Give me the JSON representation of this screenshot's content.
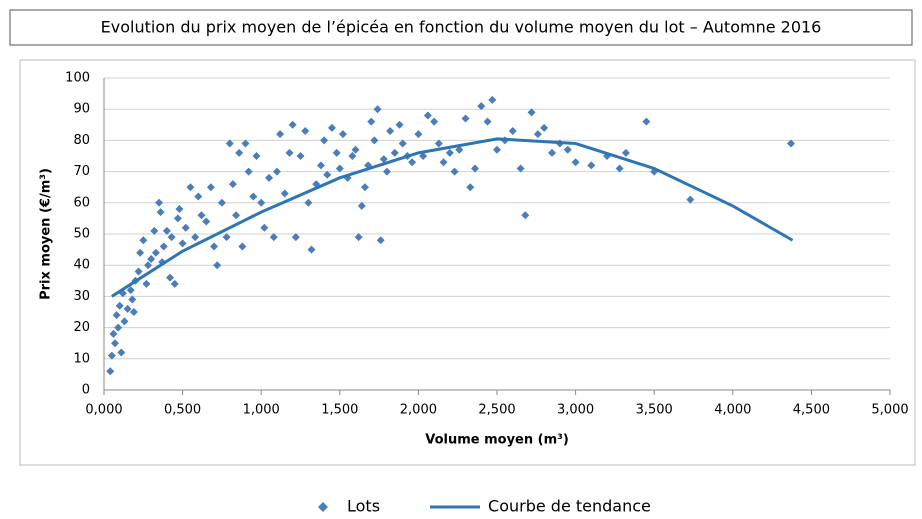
{
  "chart_data": {
    "type": "scatter",
    "title": "Evolution du prix moyen de l’épicéa en fonction du volume moyen du lot – Automne 2016",
    "x_label": "Volume moyen (m³)",
    "y_label": "Prix moyen (€/m³)",
    "xlim": [
      0,
      5
    ],
    "ylim": [
      0,
      100
    ],
    "xticks": [
      {
        "value": 0,
        "label": "0,000"
      },
      {
        "value": 0.5,
        "label": "0,500"
      },
      {
        "value": 1,
        "label": "1,000"
      },
      {
        "value": 1.5,
        "label": "1,500"
      },
      {
        "value": 2,
        "label": "2,000"
      },
      {
        "value": 2.5,
        "label": "2,500"
      },
      {
        "value": 3,
        "label": "3,000"
      },
      {
        "value": 3.5,
        "label": "3,500"
      },
      {
        "value": 4,
        "label": "4,000"
      },
      {
        "value": 4.5,
        "label": "4,500"
      },
      {
        "value": 5,
        "label": "5,000"
      }
    ],
    "yticks": [
      0,
      10,
      20,
      30,
      40,
      50,
      60,
      70,
      80,
      90,
      100
    ],
    "grid": true,
    "legend": "bottom",
    "series": [
      {
        "name": "Lots",
        "type": "scatter",
        "color": "#4a7ebb",
        "x": [
          0.04,
          0.05,
          0.06,
          0.07,
          0.08,
          0.09,
          0.1,
          0.11,
          0.12,
          0.13,
          0.15,
          0.17,
          0.18,
          0.19,
          0.2,
          0.22,
          0.23,
          0.25,
          0.27,
          0.28,
          0.3,
          0.32,
          0.33,
          0.35,
          0.36,
          0.37,
          0.38,
          0.4,
          0.42,
          0.43,
          0.45,
          0.47,
          0.48,
          0.5,
          0.52,
          0.55,
          0.58,
          0.6,
          0.62,
          0.65,
          0.68,
          0.7,
          0.72,
          0.75,
          0.78,
          0.8,
          0.82,
          0.84,
          0.86,
          0.88,
          0.9,
          0.92,
          0.95,
          0.97,
          1.0,
          1.02,
          1.05,
          1.08,
          1.1,
          1.12,
          1.15,
          1.18,
          1.2,
          1.22,
          1.25,
          1.28,
          1.3,
          1.32,
          1.35,
          1.38,
          1.4,
          1.42,
          1.45,
          1.48,
          1.5,
          1.52,
          1.55,
          1.58,
          1.6,
          1.62,
          1.64,
          1.66,
          1.68,
          1.7,
          1.72,
          1.74,
          1.76,
          1.78,
          1.8,
          1.82,
          1.85,
          1.88,
          1.9,
          1.93,
          1.96,
          2.0,
          2.03,
          2.06,
          2.1,
          2.13,
          2.16,
          2.2,
          2.23,
          2.26,
          2.3,
          2.33,
          2.36,
          2.4,
          2.44,
          2.47,
          2.5,
          2.55,
          2.6,
          2.65,
          2.68,
          2.72,
          2.76,
          2.8,
          2.85,
          2.9,
          2.95,
          3.0,
          3.1,
          3.2,
          3.28,
          3.32,
          3.45,
          3.5,
          3.73,
          4.37
        ],
        "values": [
          6,
          11,
          18,
          15,
          24,
          20,
          27,
          12,
          31,
          22,
          26,
          32,
          29,
          25,
          35,
          38,
          44,
          48,
          34,
          40,
          42,
          51,
          44,
          60,
          57,
          41,
          46,
          51,
          36,
          49,
          34,
          55,
          58,
          47,
          52,
          65,
          49,
          62,
          56,
          54,
          65,
          46,
          40,
          60,
          49,
          79,
          66,
          56,
          76,
          46,
          79,
          70,
          62,
          75,
          60,
          52,
          68,
          49,
          70,
          82,
          63,
          76,
          85,
          49,
          75,
          83,
          60,
          45,
          66,
          72,
          80,
          69,
          84,
          76,
          71,
          82,
          68,
          75,
          77,
          49,
          59,
          65,
          72,
          86,
          80,
          90,
          48,
          74,
          70,
          83,
          76,
          85,
          79,
          75,
          73,
          82,
          75,
          88,
          86,
          79,
          73,
          76,
          70,
          77,
          87,
          65,
          71,
          91,
          86,
          93,
          77,
          80,
          83,
          71,
          56,
          89,
          82,
          84,
          76,
          79,
          77,
          73,
          72,
          75,
          71,
          76,
          86,
          70,
          61,
          79
        ]
      },
      {
        "name": "Courbe de tendance",
        "type": "line",
        "color": "#2e75b6",
        "x": [
          0.05,
          0.5,
          1,
          1.5,
          2,
          2.5,
          3,
          3.5,
          4,
          4.38
        ],
        "values": [
          30,
          44.5,
          57,
          68,
          76,
          80.5,
          79,
          71,
          59,
          48
        ]
      }
    ]
  }
}
